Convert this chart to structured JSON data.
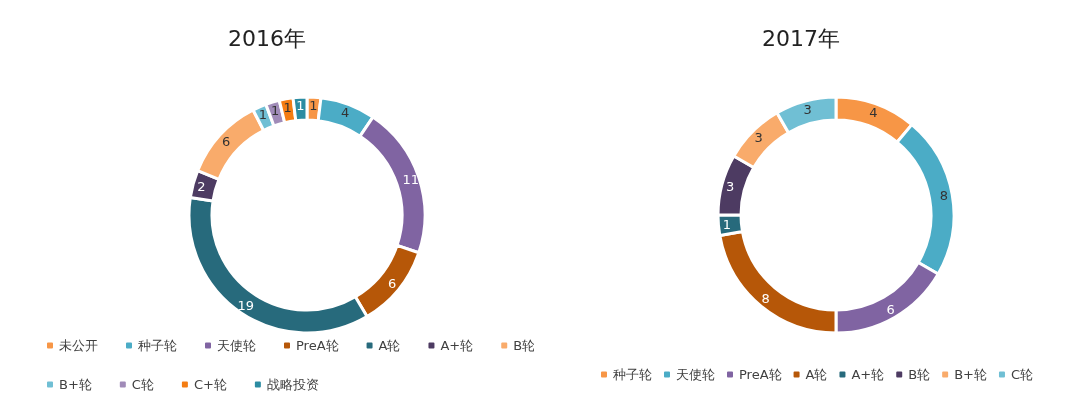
{
  "chart_data": [
    {
      "type": "donut",
      "title": "2016年",
      "categories": [
        "未公开",
        "种子轮",
        "天使轮",
        "PreA轮",
        "A轮",
        "A+轮",
        "B轮",
        "B+轮",
        "C轮",
        "C+轮",
        "战略投资"
      ],
      "values": [
        1,
        4,
        11,
        6,
        19,
        2,
        6,
        1,
        1,
        1,
        1
      ],
      "colors": [
        "#f79646",
        "#4bacc6",
        "#8064a2",
        "#b65708",
        "#276a7c",
        "#4d3b62",
        "#f9ab6b",
        "#70bfd4",
        "#a08bb8",
        "#f47d13",
        "#2c8ca2"
      ],
      "data_labels": true,
      "legend": "bottom"
    },
    {
      "type": "donut",
      "title": "2017年",
      "categories": [
        "种子轮",
        "天使轮",
        "PreA轮",
        "A轮",
        "A+轮",
        "B轮",
        "B+轮",
        "C轮"
      ],
      "values": [
        4,
        8,
        6,
        8,
        1,
        3,
        3,
        3
      ],
      "colors": [
        "#f79646",
        "#4bacc6",
        "#8064a2",
        "#b65708",
        "#276a7c",
        "#4d3b62",
        "#f9ab6b",
        "#70bfd4"
      ],
      "data_labels": true,
      "legend": "bottom"
    }
  ]
}
